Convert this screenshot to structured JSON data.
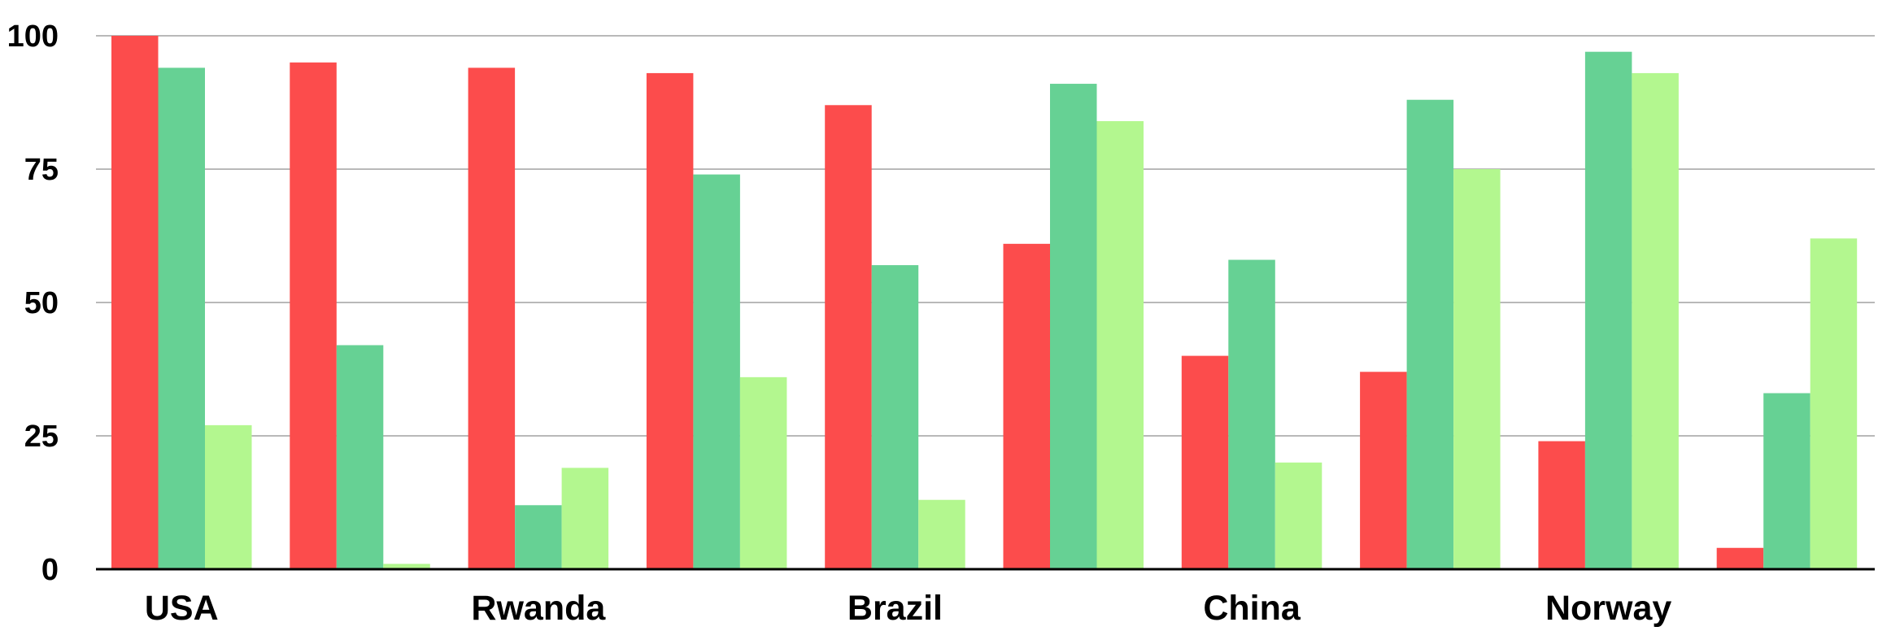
{
  "chart_data": {
    "type": "bar",
    "title": "",
    "xlabel": "",
    "ylabel": "",
    "ylim": [
      0,
      100
    ],
    "yticks": [
      0,
      25,
      50,
      75,
      100
    ],
    "grid": true,
    "categories": [
      "USA",
      "",
      "Rwanda",
      "",
      "Brazil",
      "",
      "China",
      "",
      "Norway",
      ""
    ],
    "series": [
      {
        "color": "#fc4c4c",
        "values": [
          100,
          95,
          94,
          93,
          87,
          61,
          40,
          37,
          24,
          4
        ]
      },
      {
        "color": "#66d194",
        "values": [
          94,
          42,
          12,
          74,
          57,
          91,
          58,
          88,
          97,
          33
        ]
      },
      {
        "color": "#b3f78f",
        "values": [
          27,
          1,
          19,
          36,
          13,
          84,
          20,
          75,
          93,
          62
        ]
      }
    ]
  }
}
